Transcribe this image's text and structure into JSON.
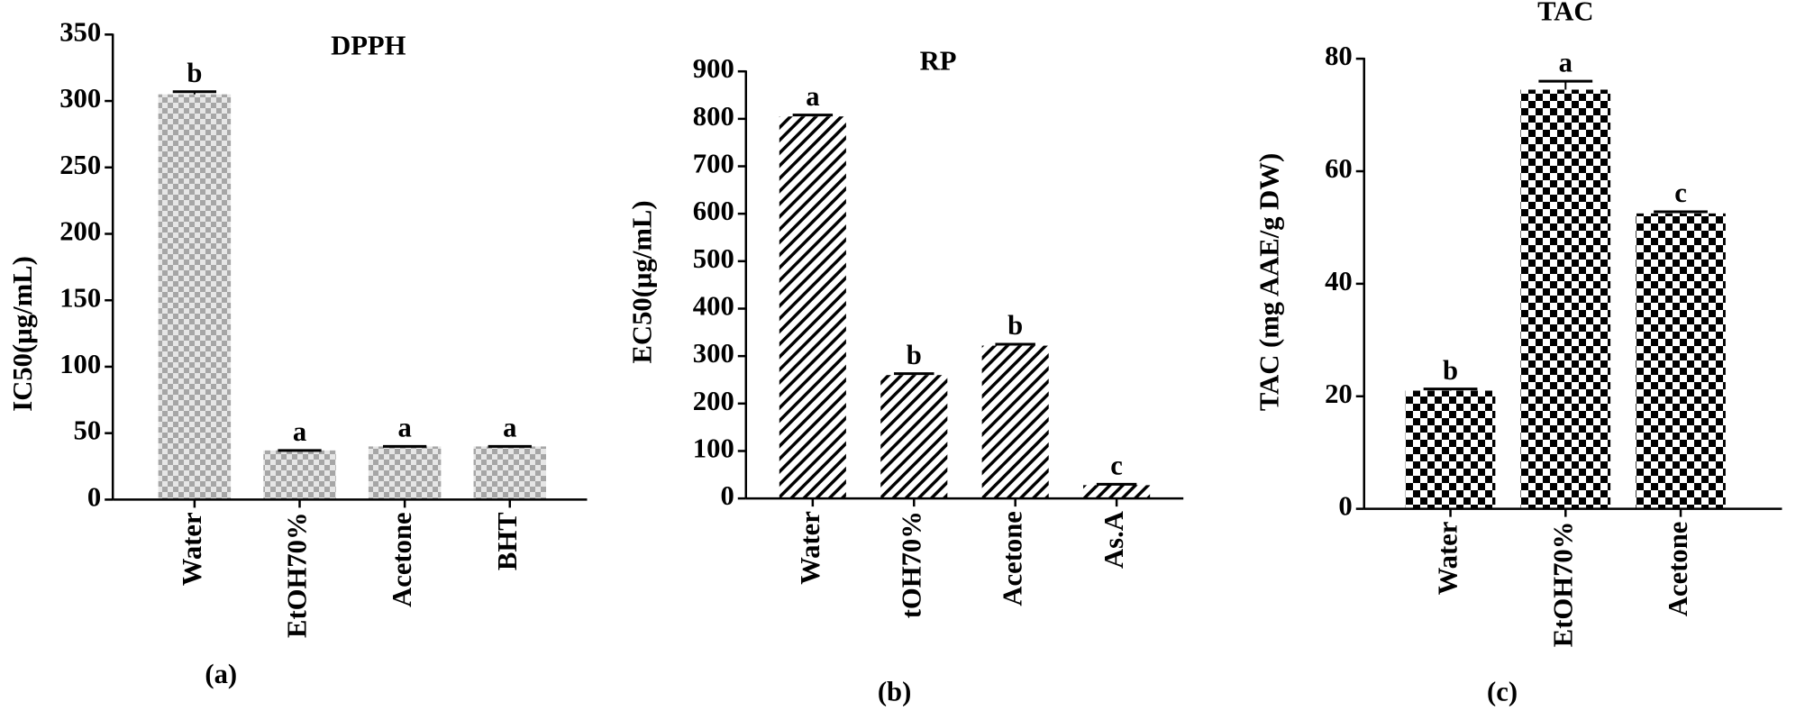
{
  "chart_data": [
    {
      "type": "bar",
      "title": "DPPH",
      "y_label": "IC50(µg/mL)",
      "panel_label": "(a)",
      "categories": [
        "Water",
        "EtOH70%",
        "Acetone",
        "BHT"
      ],
      "values": [
        305,
        37,
        40,
        40
      ],
      "errors": [
        2,
        0,
        0,
        0
      ],
      "annotations": [
        "b",
        "a",
        "a",
        "a"
      ],
      "pattern": "grey-checker",
      "color": "#a6a6a6",
      "ylim": [
        0,
        350
      ],
      "yticks": [
        0,
        50,
        100,
        150,
        200,
        250,
        300,
        350
      ],
      "grid": false
    },
    {
      "type": "bar",
      "title": "RP",
      "y_label": "EC50(µg/mL)",
      "panel_label": "(b)",
      "categories": [
        "Water",
        "tOH70%",
        "Acetone",
        "As.A"
      ],
      "values": [
        805,
        260,
        322,
        28
      ],
      "errors": [
        3,
        3,
        3,
        2
      ],
      "annotations": [
        "a",
        "b",
        "b",
        "c"
      ],
      "pattern": "hatch",
      "color": "#000000",
      "ylim": [
        0,
        900
      ],
      "yticks": [
        0,
        100,
        200,
        300,
        400,
        500,
        600,
        700,
        800,
        900
      ],
      "grid": false
    },
    {
      "type": "bar",
      "title": "TAC",
      "y_label": "TAC (mg AAE/g DW)",
      "panel_label": "(c)",
      "categories": [
        "Water",
        "EtOH70%",
        "Acetone"
      ],
      "values": [
        21,
        74.5,
        52.5
      ],
      "errors": [
        0.3,
        1.5,
        0.3
      ],
      "annotations": [
        "b",
        "a",
        "c"
      ],
      "pattern": "checker",
      "color": "#000000",
      "ylim": [
        0,
        80
      ],
      "yticks": [
        0,
        20,
        40,
        60,
        80
      ],
      "grid": false
    }
  ]
}
